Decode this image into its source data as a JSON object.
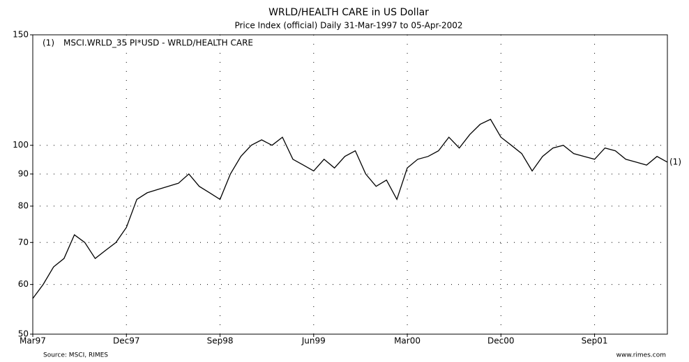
{
  "chart_data": {
    "type": "line",
    "title": "WRLD/HEALTH CARE in US Dollar",
    "subtitle": "Price Index (official) Daily 31-Mar-1997 to 05-Apr-2002",
    "source": "Source: MSCI, RIMES",
    "credit": "www.rimes.com",
    "x": [
      "1997-03",
      "1997-04",
      "1997-05",
      "1997-06",
      "1997-07",
      "1997-08",
      "1997-09",
      "1997-10",
      "1997-11",
      "1997-12",
      "1998-01",
      "1998-02",
      "1998-03",
      "1998-04",
      "1998-05",
      "1998-06",
      "1998-07",
      "1998-08",
      "1998-09",
      "1998-10",
      "1998-11",
      "1998-12",
      "1999-01",
      "1999-02",
      "1999-03",
      "1999-04",
      "1999-05",
      "1999-06",
      "1999-07",
      "1999-08",
      "1999-09",
      "1999-10",
      "1999-11",
      "1999-12",
      "2000-01",
      "2000-02",
      "2000-03",
      "2000-04",
      "2000-05",
      "2000-06",
      "2000-07",
      "2000-08",
      "2000-09",
      "2000-10",
      "2000-11",
      "2000-12",
      "2001-01",
      "2001-02",
      "2001-03",
      "2001-04",
      "2001-05",
      "2001-06",
      "2001-07",
      "2001-08",
      "2001-09",
      "2001-10",
      "2001-11",
      "2001-12",
      "2002-01",
      "2002-02",
      "2002-03",
      "2002-04"
    ],
    "series": [
      {
        "name": "MSCI.WRLD_35 PI*USD - WRLD/HEALTH CARE",
        "label": "(1)",
        "color": "#000000",
        "values": [
          57,
          60,
          64,
          66,
          72,
          70,
          66,
          68,
          70,
          74,
          82,
          84,
          85,
          86,
          87,
          90,
          86,
          84,
          82,
          90,
          96,
          100,
          102,
          100,
          103,
          95,
          93,
          91,
          95,
          92,
          96,
          98,
          90,
          86,
          88,
          82,
          92,
          95,
          96,
          98,
          103,
          99,
          104,
          108,
          110,
          103,
          100,
          97,
          91,
          96,
          99,
          100,
          97,
          96,
          95,
          99,
          98,
          95,
          94,
          93,
          96,
          94
        ]
      }
    ],
    "xlim": [
      "1997-03",
      "2002-04"
    ],
    "xticks": [
      {
        "value": "1997-03",
        "label": "Mar97"
      },
      {
        "value": "1997-12",
        "label": "Dec97"
      },
      {
        "value": "1998-09",
        "label": "Sep98"
      },
      {
        "value": "1999-06",
        "label": "Jun99"
      },
      {
        "value": "2000-03",
        "label": "Mar00"
      },
      {
        "value": "2000-12",
        "label": "Dec00"
      },
      {
        "value": "2001-09",
        "label": "Sep01"
      }
    ],
    "ylim": [
      50,
      150
    ],
    "yticks": [
      50,
      60,
      70,
      80,
      90,
      100,
      150
    ],
    "log_y": true,
    "grid": true
  }
}
